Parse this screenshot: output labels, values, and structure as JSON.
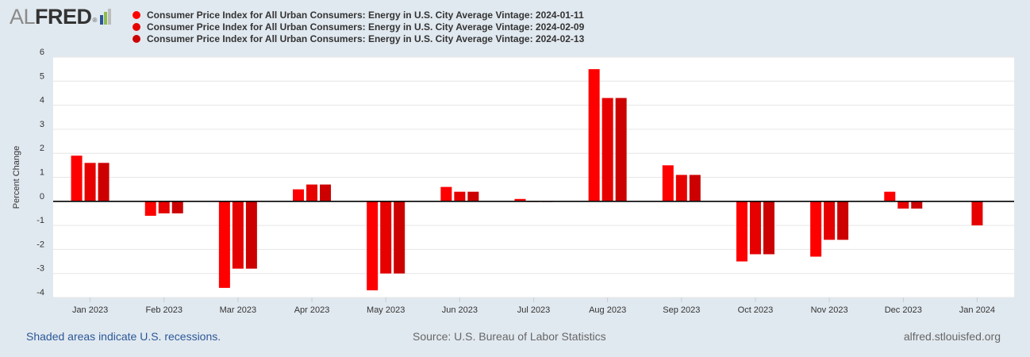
{
  "logo": {
    "prefix": "AL",
    "name": "FRED",
    "mark": "®"
  },
  "colors": {
    "series1": "#ff0000",
    "series2": "#e60000",
    "series3": "#cc0000",
    "background": "#e1e9f0",
    "plot": "#ffffff",
    "text": "#333333",
    "link": "#2b5797"
  },
  "footer": {
    "recessions": "Shaded areas indicate U.S. recessions.",
    "source": "Source: U.S. Bureau of Labor Statistics",
    "site": "alfred.stlouisfed.org"
  },
  "chart_data": {
    "type": "bar",
    "title": "",
    "xlabel": "",
    "ylabel": "Percent Change",
    "ylim": [
      -4,
      6
    ],
    "yticks": [
      6,
      5,
      4,
      3,
      2,
      1,
      0,
      -1,
      -2,
      -3,
      -4
    ],
    "categories": [
      "Jan 2023",
      "Feb 2023",
      "Mar 2023",
      "Apr 2023",
      "May 2023",
      "Jun 2023",
      "Jul 2023",
      "Aug 2023",
      "Sep 2023",
      "Oct 2023",
      "Nov 2023",
      "Dec 2023",
      "Jan 2024"
    ],
    "series": [
      {
        "name": "Consumer Price Index for All Urban Consumers: Energy in U.S. City Average Vintage: 2024-01-11",
        "color": "#ff0000",
        "values": [
          1.9,
          -0.6,
          -3.6,
          0.5,
          -3.7,
          0.6,
          0.1,
          5.5,
          1.5,
          -2.5,
          -2.3,
          0.4,
          null
        ]
      },
      {
        "name": "Consumer Price Index for All Urban Consumers: Energy in U.S. City Average Vintage: 2024-02-09",
        "color": "#e60000",
        "values": [
          1.6,
          -0.5,
          -2.8,
          0.7,
          -3.0,
          0.4,
          0.0,
          4.3,
          1.1,
          -2.2,
          -1.6,
          -0.3,
          -1.0
        ]
      },
      {
        "name": "Consumer Price Index for All Urban Consumers: Energy in U.S. City Average Vintage: 2024-02-13",
        "color": "#cc0000",
        "values": [
          1.6,
          -0.5,
          -2.8,
          0.7,
          -3.0,
          0.4,
          0.0,
          4.3,
          1.1,
          -2.2,
          -1.6,
          -0.3,
          null
        ]
      }
    ]
  }
}
